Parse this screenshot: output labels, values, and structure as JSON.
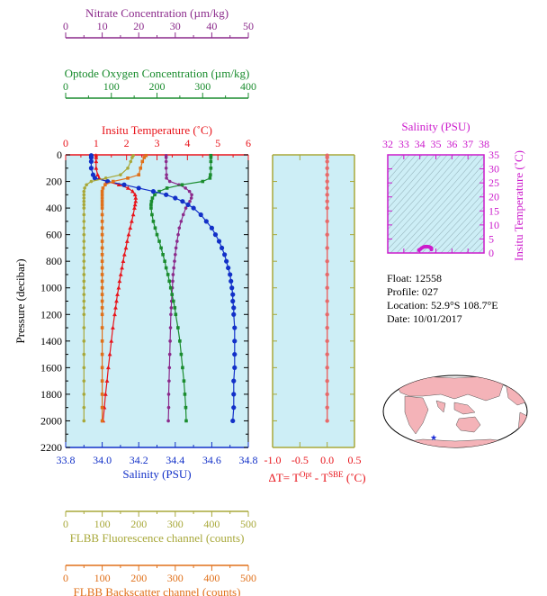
{
  "colors": {
    "plot_bg": "#cdeef6",
    "nitrate": "#8b2a8b",
    "oxygen": "#1a8c2e",
    "temperature": "#e8141b",
    "salinity": "#1230c8",
    "fluorescence": "#a8a83a",
    "backscatter": "#e0701a",
    "delta_t": "#e86a6a",
    "ts_axis": "#cc1ccc",
    "ts_data": "#cc1ccc",
    "ts_contour": "#9ab8c0",
    "map_land": "#f4b3b8",
    "map_ocean": "#ffffff",
    "map_marker": "#1a2bd6"
  },
  "float_info": {
    "float_line": "Float:  12558",
    "profile_line": "Profile:  027",
    "location_line": "Location:  52.9°S  108.7°E",
    "date_line": "Date:  10/01/2017"
  },
  "chart_data": [
    {
      "type": "line",
      "title": "",
      "ylabel": "Pressure (decibar)",
      "ylim": [
        2200,
        0
      ],
      "yticks": [
        "0",
        "200",
        "400",
        "600",
        "800",
        "1000",
        "1200",
        "1400",
        "1600",
        "1800",
        "2000",
        "2200"
      ],
      "grid": false,
      "pressure": [
        5,
        20,
        50,
        100,
        150,
        175,
        200,
        225,
        250,
        275,
        300,
        325,
        350,
        375,
        400,
        450,
        500,
        550,
        600,
        650,
        700,
        750,
        800,
        850,
        900,
        950,
        1000,
        1050,
        1100,
        1150,
        1200,
        1300,
        1400,
        1500,
        1600,
        1700,
        1800,
        1900,
        2000
      ],
      "axes": [
        {
          "label": "Nitrate Concentration (µm/kg)",
          "position": "top-1",
          "ticks": [
            "0",
            "10",
            "20",
            "30",
            "40",
            "50"
          ],
          "range": [
            0,
            50
          ]
        },
        {
          "label": "Optode Oxygen Concentration (µm/kg)",
          "position": "top-2",
          "ticks": [
            "0",
            "100",
            "200",
            "300",
            "400"
          ],
          "range": [
            0,
            400
          ]
        },
        {
          "label": "Insitu Temperature (˚C)",
          "position": "top-3",
          "ticks": [
            "0",
            "1",
            "2",
            "3",
            "4",
            "5",
            "6"
          ],
          "range": [
            0,
            6
          ]
        },
        {
          "label": "Salinity (PSU)",
          "position": "bottom-1",
          "ticks": [
            "33.8",
            "34.0",
            "34.2",
            "34.4",
            "34.6",
            "34.8"
          ],
          "range": [
            33.8,
            34.8
          ]
        },
        {
          "label": "FLBB Fluorescence channel (counts)",
          "position": "bottom-2",
          "ticks": [
            "0",
            "100",
            "200",
            "300",
            "400",
            "500"
          ],
          "range": [
            0,
            500
          ]
        },
        {
          "label": "FLBB Backscatter channel (counts)",
          "position": "bottom-3",
          "ticks": [
            "0",
            "100",
            "200",
            "300",
            "400",
            "500"
          ],
          "range": [
            0,
            500
          ]
        }
      ],
      "series": [
        {
          "name": "Nitrate Concentration",
          "color_key": "nitrate",
          "range": [
            0,
            50
          ],
          "values": [
            27.5,
            27.5,
            27.5,
            27.5,
            27.6,
            27.6,
            28.5,
            31,
            32.8,
            33.9,
            34.5,
            34.4,
            34.0,
            33.4,
            32.9,
            32.2,
            31.6,
            31.1,
            30.8,
            30.5,
            30.2,
            30.0,
            29.8,
            29.6,
            29.4,
            29.3,
            29.2,
            29.1,
            29.0,
            28.9,
            28.8,
            28.7,
            28.6,
            28.5,
            28.4,
            28.3,
            28.2,
            28.2,
            28.1
          ]
        },
        {
          "name": "Optode Oxygen Concentration",
          "color_key": "oxygen",
          "range": [
            0,
            400
          ],
          "values": [
            318,
            318,
            318,
            318,
            317,
            316,
            300,
            255,
            222,
            205,
            195,
            190,
            188,
            187,
            187,
            189,
            192,
            196,
            200,
            205,
            209,
            213,
            217,
            220,
            224,
            227,
            230,
            233,
            236,
            239,
            241,
            246,
            250,
            253,
            256,
            259,
            261,
            263,
            264
          ]
        },
        {
          "name": "Insitu Temperature",
          "color_key": "temperature",
          "range": [
            0,
            6
          ],
          "values": [
            1.0,
            1.0,
            1.0,
            1.0,
            1.05,
            1.1,
            1.35,
            1.75,
            2.05,
            2.2,
            2.28,
            2.3,
            2.3,
            2.28,
            2.26,
            2.22,
            2.17,
            2.12,
            2.07,
            2.02,
            1.98,
            1.93,
            1.89,
            1.85,
            1.81,
            1.77,
            1.74,
            1.7,
            1.67,
            1.64,
            1.61,
            1.55,
            1.5,
            1.45,
            1.4,
            1.36,
            1.31,
            1.27,
            1.23
          ]
        },
        {
          "name": "Salinity",
          "color_key": "salinity",
          "range": [
            33.8,
            34.8
          ],
          "values": [
            33.94,
            33.94,
            33.94,
            33.94,
            33.95,
            33.96,
            34.03,
            34.12,
            34.2,
            34.28,
            34.35,
            34.4,
            34.44,
            34.47,
            34.5,
            34.54,
            34.57,
            34.6,
            34.62,
            34.64,
            34.655,
            34.67,
            34.68,
            34.69,
            34.7,
            34.705,
            34.71,
            34.715,
            34.715,
            34.72,
            34.72,
            34.725,
            34.725,
            34.725,
            34.725,
            34.72,
            34.72,
            34.72,
            34.715
          ]
        },
        {
          "name": "FLBB Fluorescence",
          "color_key": "fluorescence",
          "range": [
            0,
            500
          ],
          "values": [
            185,
            182,
            178,
            170,
            150,
            110,
            70,
            57,
            52,
            50,
            50,
            50,
            50,
            50,
            50,
            50,
            50,
            50,
            50,
            50,
            50,
            50,
            50,
            50,
            50,
            50,
            50,
            50,
            50,
            50,
            50,
            50,
            50,
            50,
            50,
            50,
            50,
            50,
            50
          ]
        },
        {
          "name": "FLBB Backscatter",
          "color_key": "backscatter",
          "range": [
            0,
            500
          ],
          "values": [
            220,
            215,
            210,
            205,
            200,
            170,
            130,
            108,
            102,
            100,
            100,
            100,
            100,
            100,
            100,
            100,
            100,
            100,
            100,
            100,
            100,
            100,
            100,
            100,
            100,
            100,
            100,
            100,
            100,
            100,
            100,
            100,
            100,
            100,
            100,
            100,
            100,
            100,
            100
          ]
        }
      ]
    },
    {
      "type": "line",
      "title": "",
      "xlabel": "ΔT= T^Opt - T^SBE (˚C)",
      "xlabel_parts": {
        "prefix": "ΔT= T",
        "sup1": "Opt",
        "mid": " - T",
        "sup2": "SBE",
        "suffix": " (˚C)"
      },
      "xlim": [
        -1.0,
        0.5
      ],
      "xticks": [
        "-1.0",
        "-0.5",
        "0.0",
        "0.5"
      ],
      "ylim": [
        2200,
        0
      ],
      "series": [
        {
          "name": "ΔT",
          "color_key": "delta_t",
          "pressure": [
            5,
            20,
            50,
            100,
            150,
            200,
            250,
            300,
            350,
            400,
            500,
            600,
            700,
            800,
            900,
            1000,
            1100,
            1200,
            1300,
            1400,
            1500,
            1600,
            1700,
            1800,
            1900,
            2000
          ],
          "values": [
            0.0,
            0.0,
            0.0,
            0.0,
            0.0,
            0.0,
            0.0,
            0.0,
            0.0,
            0.0,
            0.0,
            0.0,
            0.0,
            0.0,
            0.0,
            0.0,
            0.0,
            0.0,
            0.0,
            0.0,
            0.0,
            0.0,
            0.0,
            0.0,
            0.0,
            0.0
          ]
        }
      ]
    },
    {
      "type": "scatter",
      "title": "",
      "xlabel": "Salinity (PSU)",
      "ylabel": "Insitu Temperature (˚C)",
      "xlim": [
        32,
        38
      ],
      "ylim": [
        0,
        35
      ],
      "xticks": [
        "32",
        "33",
        "34",
        "35",
        "36",
        "37",
        "38"
      ],
      "yticks": [
        "0",
        "5",
        "10",
        "15",
        "20",
        "25",
        "30",
        "35"
      ],
      "series": [
        {
          "name": "T-S",
          "color_key": "ts_data",
          "x": [
            33.94,
            33.95,
            34.03,
            34.12,
            34.2,
            34.28,
            34.35,
            34.44,
            34.5,
            34.57,
            34.62,
            34.67,
            34.7,
            34.72,
            34.72,
            34.72
          ],
          "y": [
            1.0,
            1.05,
            1.35,
            1.75,
            2.05,
            2.2,
            2.28,
            2.3,
            2.26,
            2.17,
            2.07,
            1.93,
            1.81,
            1.64,
            1.45,
            1.23
          ]
        }
      ]
    }
  ]
}
